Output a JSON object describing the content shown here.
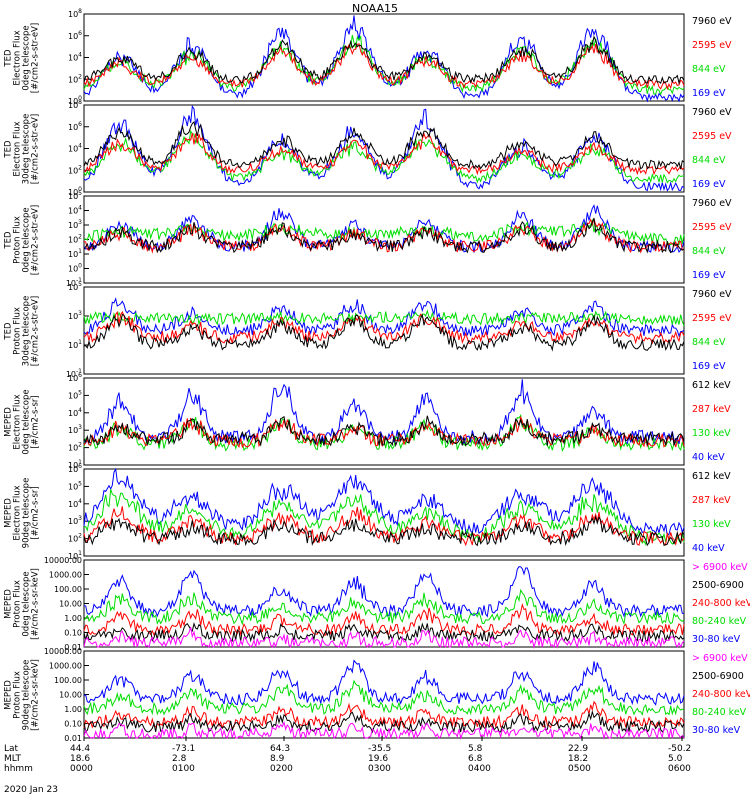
{
  "title": "NOAA15",
  "date_label": "2020 Jan 23",
  "row_labels": [
    "Lat",
    "MLT",
    "hhmm"
  ],
  "columns": [
    {
      "lat": "44.4",
      "mlt": "18.6",
      "hhmm": "0000"
    },
    {
      "lat": "-73.1",
      "mlt": "2.8",
      "hhmm": "0100"
    },
    {
      "lat": "64.3",
      "mlt": "8.9",
      "hhmm": "0200"
    },
    {
      "lat": "-35.5",
      "mlt": "19.6",
      "hhmm": "0300"
    },
    {
      "lat": "5.8",
      "mlt": "6.8",
      "hhmm": "0400"
    },
    {
      "lat": "22.9",
      "mlt": "18.2",
      "hhmm": "0500"
    },
    {
      "lat": "-50.2",
      "mlt": "5.0",
      "hhmm": "0600"
    }
  ],
  "colors": {
    "black": "#000000",
    "red": "#ff0000",
    "green": "#00dd00",
    "blue": "#0000ff",
    "magenta": "#ff00ff"
  },
  "chart_data": [
    {
      "type": "line",
      "ylog": true,
      "ylim_exp": [
        0,
        8
      ],
      "ylabel_lines": [
        "TED",
        "Electron Flux",
        "0deg telescope",
        "[#/cm2-s-str-eV]"
      ],
      "ticks": [
        "10^0",
        "10^2",
        "10^4",
        "10^6",
        "10^8"
      ],
      "legend": [
        {
          "label": "7960 eV",
          "color": "black"
        },
        {
          "label": "2595 eV",
          "color": "red"
        },
        {
          "label": "844 eV",
          "color": "green"
        },
        {
          "label": "169 eV",
          "color": "blue"
        }
      ],
      "base": [
        2.0,
        1.5,
        1.0,
        0.3
      ],
      "peak": [
        5.5,
        5.0,
        5.5,
        7.0
      ],
      "widths": [
        0.07,
        0.07,
        0.08,
        0.08
      ]
    },
    {
      "type": "line",
      "ylog": true,
      "ylim_exp": [
        0,
        8
      ],
      "ylabel_lines": [
        "TED",
        "Electron Flux",
        "30deg telescope",
        "[#/cm2-s-str-eV]"
      ],
      "ticks": [
        "10^0",
        "10^2",
        "10^4",
        "10^6",
        "10^8"
      ],
      "legend": [
        {
          "label": "7960 eV",
          "color": "black"
        },
        {
          "label": "2595 eV",
          "color": "red"
        },
        {
          "label": "844 eV",
          "color": "green"
        },
        {
          "label": "169 eV",
          "color": "blue"
        }
      ],
      "base": [
        2.5,
        2.0,
        1.2,
        0.5
      ],
      "peak": [
        6.0,
        5.0,
        5.0,
        7.0
      ],
      "widths": [
        0.07,
        0.07,
        0.08,
        0.08
      ]
    },
    {
      "type": "line",
      "ylog": true,
      "ylim_exp": [
        -1,
        5
      ],
      "ylabel_lines": [
        "TED",
        "Proton Flux",
        "0deg telescope",
        "[#/cm2-s-str-eV]"
      ],
      "ticks": [
        "10^-1",
        "10^0",
        "10^1",
        "10^2",
        "10^3",
        "10^4",
        "10^5"
      ],
      "legend": [
        {
          "label": "7960 eV",
          "color": "black"
        },
        {
          "label": "2595 eV",
          "color": "red"
        },
        {
          "label": "844 eV",
          "color": "green"
        },
        {
          "label": "169 eV",
          "color": "blue"
        }
      ],
      "base": [
        1.5,
        1.5,
        2.0,
        1.5
      ],
      "peak": [
        3.0,
        3.0,
        2.8,
        4.0
      ],
      "widths": [
        0.06,
        0.06,
        0.12,
        0.06
      ]
    },
    {
      "type": "line",
      "ylog": true,
      "ylim_exp": [
        -1,
        5
      ],
      "ylabel_lines": [
        "TED",
        "Proton Flux",
        "30deg telescope",
        "[#/cm2-s-str-eV]"
      ],
      "ticks": [
        "10^-1",
        "10^1",
        "10^3",
        "10^5"
      ],
      "legend": [
        {
          "label": "7960 eV",
          "color": "black"
        },
        {
          "label": "2595 eV",
          "color": "red"
        },
        {
          "label": "844 eV",
          "color": "green"
        },
        {
          "label": "169 eV",
          "color": "blue"
        }
      ],
      "base": [
        1.0,
        1.5,
        2.7,
        2.0
      ],
      "peak": [
        3.0,
        3.0,
        3.0,
        4.0
      ],
      "widths": [
        0.06,
        0.06,
        0.12,
        0.06
      ]
    },
    {
      "type": "line",
      "ylog": true,
      "ylim_exp": [
        1,
        6
      ],
      "ylabel_lines": [
        "MEPED",
        "Electron Flux",
        "0deg telescope",
        "[#/cm2-s-sr]"
      ],
      "ticks": [
        "10^1",
        "10^2",
        "10^3",
        "10^4",
        "10^5",
        "10^6"
      ],
      "legend": [
        {
          "label": "612 keV",
          "color": "black"
        },
        {
          "label": "287 keV",
          "color": "red"
        },
        {
          "label": "130 keV",
          "color": "green"
        },
        {
          "label": "40 keV",
          "color": "blue"
        }
      ],
      "base": [
        2.5,
        2.4,
        2.2,
        2.6
      ],
      "peak": [
        3.6,
        3.5,
        3.6,
        5.5
      ],
      "widths": [
        0.04,
        0.05,
        0.05,
        0.05
      ]
    },
    {
      "type": "line",
      "ylog": true,
      "ylim_exp": [
        1,
        6
      ],
      "ylabel_lines": [
        "MEPED",
        "Electron Flux",
        "90deg telescope",
        "[#/cm2-s-sr]"
      ],
      "ticks": [
        "10^1",
        "10^2",
        "10^3",
        "10^4",
        "10^5",
        "10^6"
      ],
      "legend": [
        {
          "label": "612 keV",
          "color": "black"
        },
        {
          "label": "287 keV",
          "color": "red"
        },
        {
          "label": "130 keV",
          "color": "green"
        },
        {
          "label": "40 keV",
          "color": "blue"
        }
      ],
      "base": [
        2.0,
        2.0,
        2.0,
        2.5
      ],
      "peak": [
        3.0,
        3.5,
        4.5,
        5.5
      ],
      "widths": [
        0.06,
        0.07,
        0.09,
        0.09
      ]
    },
    {
      "type": "line",
      "ylog": true,
      "ylim_exp": [
        -2,
        4
      ],
      "ylabel_lines": [
        "MEPED",
        "Proton Flux",
        "0deg telescope",
        "[#/cm2-s-sr-keV]"
      ],
      "ticks": [
        "0.01",
        "0.10",
        "1.00",
        "10.00",
        "100.00",
        "1000.00",
        "10000.00"
      ],
      "legend": [
        {
          "label": "> 6900 keV",
          "color": "magenta"
        },
        {
          "label": "2500-6900",
          "color": "black"
        },
        {
          "label": "240-800 keV",
          "color": "red"
        },
        {
          "label": "80-240 keV",
          "color": "green"
        },
        {
          "label": "30-80 keV",
          "color": "blue"
        }
      ],
      "base": [
        -1.7,
        -1.2,
        -0.8,
        0.0,
        0.5
      ],
      "peak": [
        -1.0,
        -0.5,
        0.5,
        1.5,
        3.2
      ],
      "widths": [
        0.02,
        0.03,
        0.04,
        0.05,
        0.05
      ]
    },
    {
      "type": "line",
      "ylog": true,
      "ylim_exp": [
        -2,
        4
      ],
      "ylabel_lines": [
        "MEPED",
        "Proton Flux",
        "90deg telescope",
        "[#/cm2-s-sr-keV]"
      ],
      "ticks": [
        "0.01",
        "0.10",
        "1.00",
        "10.00",
        "100.00",
        "1000.00",
        "10000.00"
      ],
      "legend": [
        {
          "label": "> 6900 keV",
          "color": "magenta"
        },
        {
          "label": "2500-6900",
          "color": "black"
        },
        {
          "label": "240-800 keV",
          "color": "red"
        },
        {
          "label": "80-240 keV",
          "color": "green"
        },
        {
          "label": "30-80 keV",
          "color": "blue"
        }
      ],
      "base": [
        -1.7,
        -1.2,
        -0.9,
        0.0,
        0.7
      ],
      "peak": [
        -1.0,
        -0.5,
        0.2,
        1.5,
        3.0
      ],
      "widths": [
        0.02,
        0.03,
        0.04,
        0.05,
        0.05
      ]
    }
  ]
}
